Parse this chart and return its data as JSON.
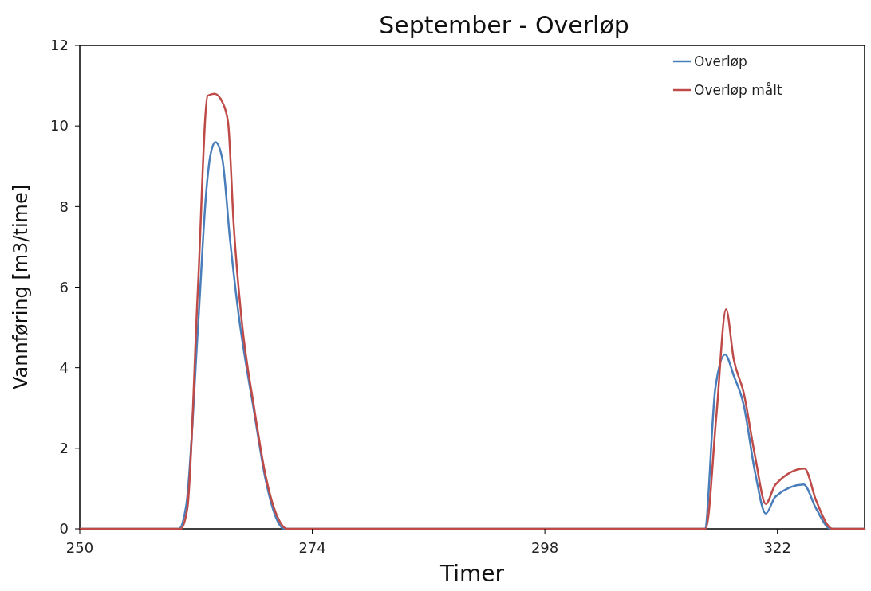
{
  "chart_data": {
    "type": "line",
    "title": "September - Overløp",
    "xlabel": "Timer",
    "ylabel": "Vannføring [m3/time]",
    "xlim": [
      250,
      331
    ],
    "xticks": [
      250,
      274,
      298,
      322
    ],
    "ylim": [
      0,
      12
    ],
    "yticks": [
      0,
      2,
      4,
      6,
      8,
      10,
      12
    ],
    "grid": false,
    "legend": "top right",
    "marker": "none",
    "line_style": "solid",
    "series": [
      {
        "name": "Overløp",
        "color": "#4a7ebb",
        "x": [
          250,
          260.2,
          261,
          262.2,
          263.1,
          263.5,
          264,
          264.7,
          265.5,
          266.3,
          268,
          269.2,
          270.4,
          271.1,
          314.5,
          315.6,
          316.6,
          317.5,
          318.5,
          319.7,
          320.8,
          321.8,
          324.7,
          326,
          327.5,
          331
        ],
        "values": [
          0,
          0,
          0.6,
          5,
          8.5,
          9.3,
          9.6,
          9.2,
          7.2,
          5.5,
          2.9,
          1.2,
          0.2,
          0,
          0,
          3.5,
          4.33,
          3.8,
          3.1,
          1.4,
          0.38,
          0.8,
          1.1,
          0.5,
          0,
          0
        ]
      },
      {
        "name": "Overløp målt",
        "color": "#be4b48",
        "x": [
          250,
          260.4,
          261.1,
          262.2,
          263.2,
          263.9,
          264.7,
          265.3,
          265.9,
          266.7,
          268,
          269.2,
          270.4,
          271.4,
          314.6,
          315.7,
          316.7,
          317.5,
          318.5,
          319.7,
          320.8,
          321.8,
          324.8,
          326,
          327.7,
          331
        ],
        "values": [
          0,
          0,
          0.5,
          6,
          10.75,
          10.8,
          10.6,
          10.1,
          7.5,
          5.2,
          3.0,
          1.3,
          0.3,
          0,
          0,
          2.8,
          5.45,
          4.2,
          3.4,
          1.8,
          0.62,
          1.1,
          1.5,
          0.7,
          0,
          0
        ]
      }
    ]
  }
}
